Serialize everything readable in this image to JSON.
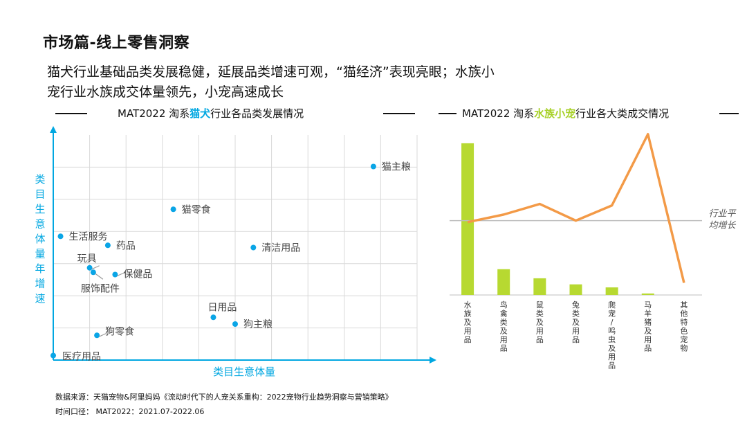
{
  "page_title": "市场篇-线上零售洞察",
  "headline": {
    "line1": "猫犬行业基础品类发展稳健，延展品类增速可观，“猫经济”表现亮眼；水族小",
    "line2": "宠行业水族成交体量领先，小宠高速成长"
  },
  "left_title": {
    "prefix": "MAT2022 淘系",
    "highlight": "猫犬",
    "suffix": "行业各品类发展情况"
  },
  "right_title": {
    "prefix": "MAT2022 淘系",
    "highlight": "水族小宠",
    "suffix": "行业各大类成交情况"
  },
  "colors": {
    "scatter_point": "#0aa5e6",
    "axis": "#00a7e1",
    "bar": "#b7d931",
    "line": "#f39a47",
    "avg_line": "#bdbdbd"
  },
  "footer": {
    "source": "数据来源：天猫宠物&阿里妈妈《流动时代下的人宠关系重构：2022宠物行业趋势洞察与营销策略》",
    "period": "时间口径： MAT2022：2021.07-2022.06"
  },
  "chart_data": [
    {
      "type": "scatter",
      "title": "MAT2022 淘系猫犬行业各品类发展情况",
      "xlabel": "类目生意体量",
      "ylabel": "类目生意体量年增速",
      "xlim": [
        0,
        100
      ],
      "ylim": [
        0,
        100
      ],
      "grid": true,
      "points": [
        {
          "label": "猫主粮",
          "x": 88,
          "y": 86
        },
        {
          "label": "猫零食",
          "x": 33,
          "y": 67
        },
        {
          "label": "生活服务",
          "x": 2,
          "y": 55
        },
        {
          "label": "药品",
          "x": 15,
          "y": 51
        },
        {
          "label": "清洁用品",
          "x": 55,
          "y": 50
        },
        {
          "label": "玩具",
          "x": 10,
          "y": 41
        },
        {
          "label": "服饰配件",
          "x": 11,
          "y": 39
        },
        {
          "label": "保健品",
          "x": 17,
          "y": 38
        },
        {
          "label": "日用品",
          "x": 44,
          "y": 19
        },
        {
          "label": "狗主粮",
          "x": 50,
          "y": 16
        },
        {
          "label": "狗零食",
          "x": 12,
          "y": 11
        },
        {
          "label": "医疗用品",
          "x": 0,
          "y": 2
        }
      ]
    },
    {
      "type": "bar",
      "title": "MAT2022 淘系水族小宠行业各大类成交情况",
      "categories": [
        "水族及用品",
        "鸟禽类及用品",
        "鼠类及用品",
        "兔类及用品",
        "爬宠/鸣虫及用品",
        "马羊猪及用品",
        "其他特色宠物"
      ],
      "series": [
        {
          "type": "bar",
          "values": [
            100,
            17,
            11,
            7,
            5,
            1,
            0
          ]
        },
        {
          "type": "line",
          "values": [
            48,
            53,
            60,
            49,
            59,
            106,
            8
          ]
        }
      ],
      "reference_line": {
        "label": "行业平均增长",
        "value": 49
      },
      "ylim": [
        0,
        110
      ]
    }
  ]
}
